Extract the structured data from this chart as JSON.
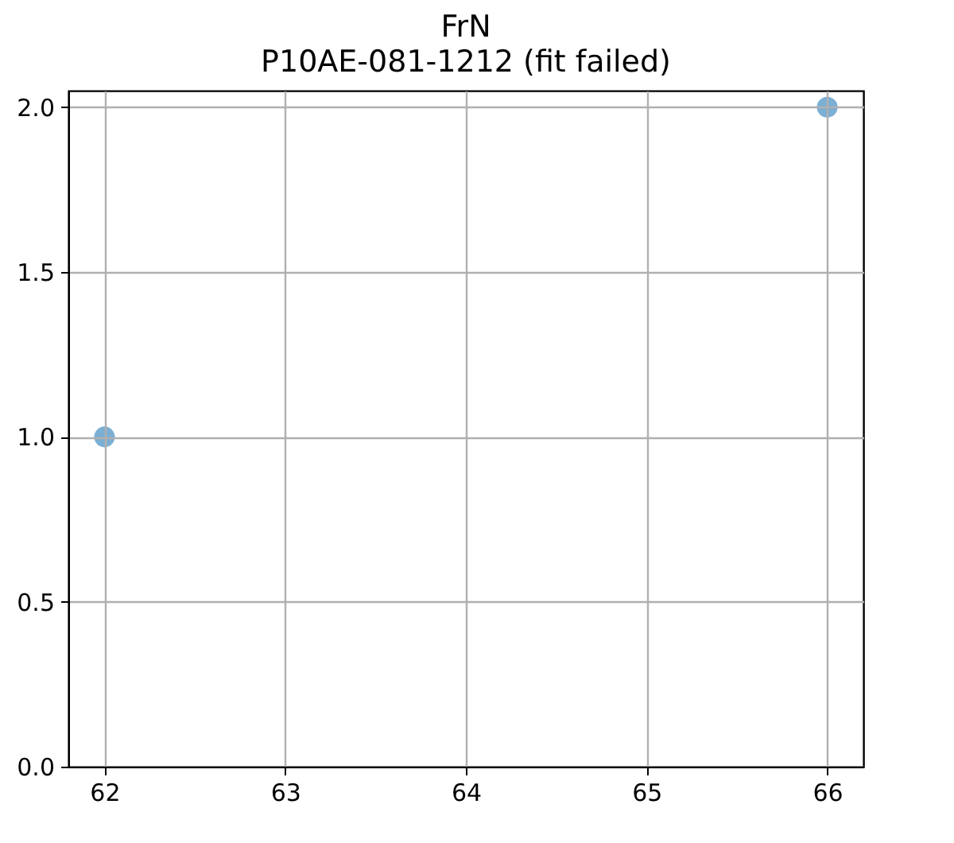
{
  "chart_data": {
    "type": "scatter",
    "title": "FrN",
    "subtitle": "P10AE-081-1212 (fit failed)",
    "x": [
      62,
      66
    ],
    "series": [
      {
        "color": "#7bafd4",
        "values": [
          1,
          2
        ]
      }
    ],
    "xlim": [
      61.8,
      66.2
    ],
    "xticks": [
      62,
      63,
      64,
      65,
      66
    ],
    "ylim": [
      0,
      2.05
    ],
    "yticks": [
      {
        "value": 0,
        "label": "0.0"
      },
      {
        "value": 0.5,
        "label": "0.5"
      },
      {
        "value": 1,
        "label": "1.0"
      },
      {
        "value": 1.5,
        "label": "1.5"
      },
      {
        "value": 2,
        "label": "2.0"
      }
    ],
    "grid": true,
    "marker": "circle"
  }
}
